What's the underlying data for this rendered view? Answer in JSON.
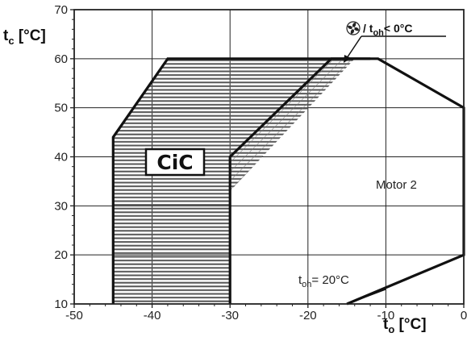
{
  "chart_data": {
    "type": "area",
    "title": "",
    "xlabel": {
      "main": "t",
      "sub": "o",
      "unit": " [°C]"
    },
    "ylabel": {
      "main": "t",
      "sub": "c",
      "unit": " [°C]"
    },
    "xlim": [
      -50,
      0
    ],
    "ylim": [
      10,
      70
    ],
    "xticks": [
      -50,
      -40,
      -30,
      -20,
      -10,
      0
    ],
    "yticks": [
      10,
      20,
      30,
      40,
      50,
      60,
      70
    ],
    "xtick_labels": [
      "-50",
      "-40",
      "-30",
      "-20",
      "-10",
      "0"
    ],
    "ytick_labels": [
      "10",
      "20",
      "30",
      "40",
      "50",
      "60",
      "70"
    ],
    "grid": true,
    "regions": [
      {
        "id": "horizontal-hatched-region",
        "pattern": "horizontal-lines",
        "points": [
          [
            -45,
            10
          ],
          [
            -45,
            44
          ],
          [
            -38,
            60
          ],
          [
            -14,
            60
          ],
          [
            -30,
            33
          ],
          [
            -30,
            10
          ]
        ]
      },
      {
        "id": "diagonal-hatched-region",
        "pattern": "diagonal-lines",
        "points": [
          [
            -30,
            33
          ],
          [
            -14,
            60
          ],
          [
            -17,
            60
          ],
          [
            -30,
            40
          ]
        ]
      }
    ],
    "envelopes": [
      {
        "id": "outer-envelope",
        "points": [
          [
            -45,
            10
          ],
          [
            -45,
            44
          ],
          [
            -38,
            60
          ],
          [
            -11,
            60
          ],
          [
            0,
            50
          ],
          [
            0,
            20
          ],
          [
            -15,
            10
          ]
        ]
      },
      {
        "id": "inner-envelope",
        "points": [
          [
            -30,
            10
          ],
          [
            -30,
            40
          ],
          [
            -17,
            60
          ],
          [
            -12,
            60
          ]
        ]
      },
      {
        "id": "toh-20-line",
        "points": [
          [
            -15,
            10
          ],
          [
            -10,
            13
          ]
        ]
      }
    ],
    "annotations": {
      "fan_text": "/ t",
      "fan_sub": "oh",
      "fan_tail": "< 0°C",
      "motor_label": "Motor 2",
      "toh_text": "t",
      "toh_sub": "oh",
      "toh_tail": "= 20°C",
      "logo_text": "CiC",
      "fan_icon": "fan-icon"
    }
  }
}
